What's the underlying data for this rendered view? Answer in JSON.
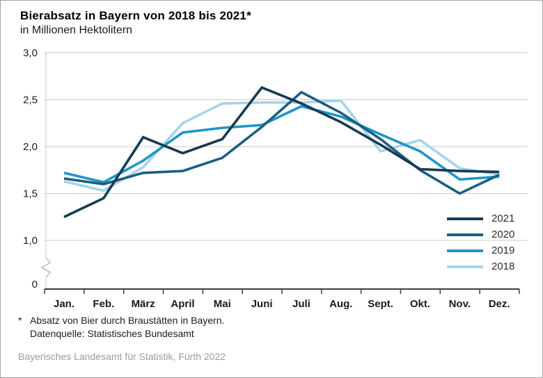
{
  "header": {
    "title": "Bierabsatz in Bayern von 2018 bis 2021*",
    "subtitle": "in Millionen Hektolitern"
  },
  "footnote": {
    "marker": "*",
    "line1": "Absatz von Bier durch Braustätten in Bayern.",
    "line2": "Datenquelle: Statistisches Bundesamt"
  },
  "footer": {
    "credit": "Bayerisches Landesamt für Statistik, Fürth 2022"
  },
  "colors": {
    "grid": "#c9c9c9",
    "axis": "#3c3c3c",
    "tick_text": "#1a1a1a",
    "break_glyph": "#bdbdbd"
  },
  "chart_data": {
    "type": "line",
    "title": "Bierabsatz in Bayern von 2018 bis 2021*",
    "ylabel": "in Millionen Hektolitern",
    "categories": [
      "Jan.",
      "Feb.",
      "März",
      "April",
      "Mai",
      "Juni",
      "Juli",
      "Aug.",
      "Sept.",
      "Okt.",
      "Nov.",
      "Dez."
    ],
    "ytick_values": [
      3.0,
      2.5,
      2.0,
      1.5,
      1.0
    ],
    "ytick_labels": [
      "3,0",
      "2,5",
      "2,0",
      "1,5",
      "1,0"
    ],
    "y_zero_label": "0",
    "ylim": [
      1.0,
      3.0
    ],
    "axis_break": true,
    "grid": true,
    "legend_position": "right-bottom",
    "series": [
      {
        "name": "2021",
        "color": "#163a50",
        "values": [
          1.25,
          1.45,
          2.1,
          1.93,
          2.08,
          2.63,
          2.46,
          2.26,
          2.02,
          1.76,
          1.74,
          1.73
        ]
      },
      {
        "name": "2020",
        "color": "#1b5e7e",
        "values": [
          1.66,
          1.6,
          1.72,
          1.74,
          1.88,
          2.21,
          2.58,
          2.36,
          2.08,
          1.75,
          1.5,
          1.7
        ]
      },
      {
        "name": "2019",
        "color": "#1e95c9",
        "values": [
          1.72,
          1.62,
          1.85,
          2.15,
          2.2,
          2.23,
          2.43,
          2.32,
          2.13,
          1.95,
          1.65,
          1.68
        ]
      },
      {
        "name": "2018",
        "color": "#a5d4ea",
        "values": [
          1.63,
          1.53,
          1.78,
          2.25,
          2.46,
          2.47,
          2.47,
          2.49,
          1.95,
          2.07,
          1.77,
          1.7
        ]
      }
    ]
  }
}
